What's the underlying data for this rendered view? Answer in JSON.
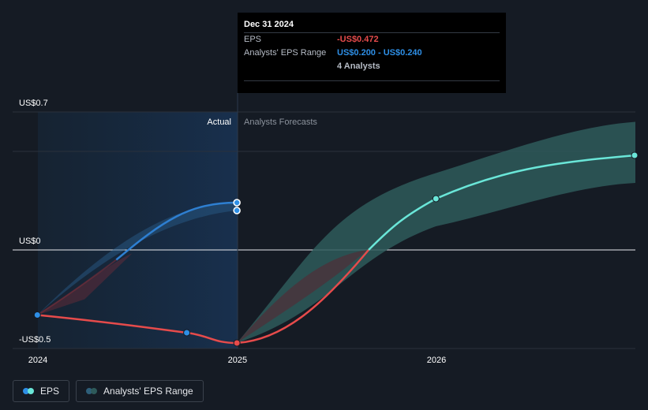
{
  "chart_data": {
    "type": "line",
    "x_ticks": [
      "2024",
      "2025",
      "2026"
    ],
    "y_ticks": [
      {
        "label": "US$0.7",
        "value": 0.7
      },
      {
        "label": "US$0",
        "value": 0
      },
      {
        "label": "-US$0.5",
        "value": -0.5
      }
    ],
    "ylim": [
      -0.5,
      0.7
    ],
    "region_labels": {
      "actual": "Actual",
      "forecast": "Analysts Forecasts"
    },
    "series": [
      {
        "name": "EPS",
        "points": [
          {
            "x": "2023-12-31",
            "y": -0.33
          },
          {
            "x": "2024-09-30",
            "y": -0.42
          },
          {
            "x": "2024-12-31",
            "y": -0.472
          }
        ],
        "forecast": [
          {
            "x": "2024-12-31",
            "y": -0.472
          },
          {
            "x": "2025-12-31",
            "y": 0.26
          },
          {
            "x": "2026-12-31",
            "y": 0.48
          }
        ]
      },
      {
        "name": "Analysts' EPS Range",
        "actual_range": [
          {
            "x": "2023-12-31",
            "low": -0.33,
            "high": -0.33
          },
          {
            "x": "2024-12-31",
            "low": 0.2,
            "high": 0.24
          }
        ],
        "forecast_range": [
          {
            "x": "2024-12-31",
            "low": -0.472,
            "high": -0.472
          },
          {
            "x": "2025-12-31",
            "low": 0.12,
            "high": 0.39
          },
          {
            "x": "2026-12-31",
            "low": 0.34,
            "high": 0.65
          }
        ]
      }
    ],
    "grid": true
  },
  "tooltip": {
    "date": "Dec 31 2024",
    "eps_label": "EPS",
    "eps_value": "-US$0.472",
    "range_label": "Analysts' EPS Range",
    "range_value": "US$0.200 - US$0.240",
    "analysts": "4 Analysts"
  },
  "legend": {
    "eps": "EPS",
    "range": "Analysts' EPS Range"
  },
  "colors": {
    "background": "#151b24",
    "eps_negative": "#e64b4b",
    "eps_positive": "#6ae6d8",
    "actual_range": "#2e7fd1",
    "forecast_band": "#2e5a5a",
    "actual_shade": "#172b40",
    "tooltip_negative": "#e64b4b",
    "tooltip_range": "#2e8fe6"
  }
}
